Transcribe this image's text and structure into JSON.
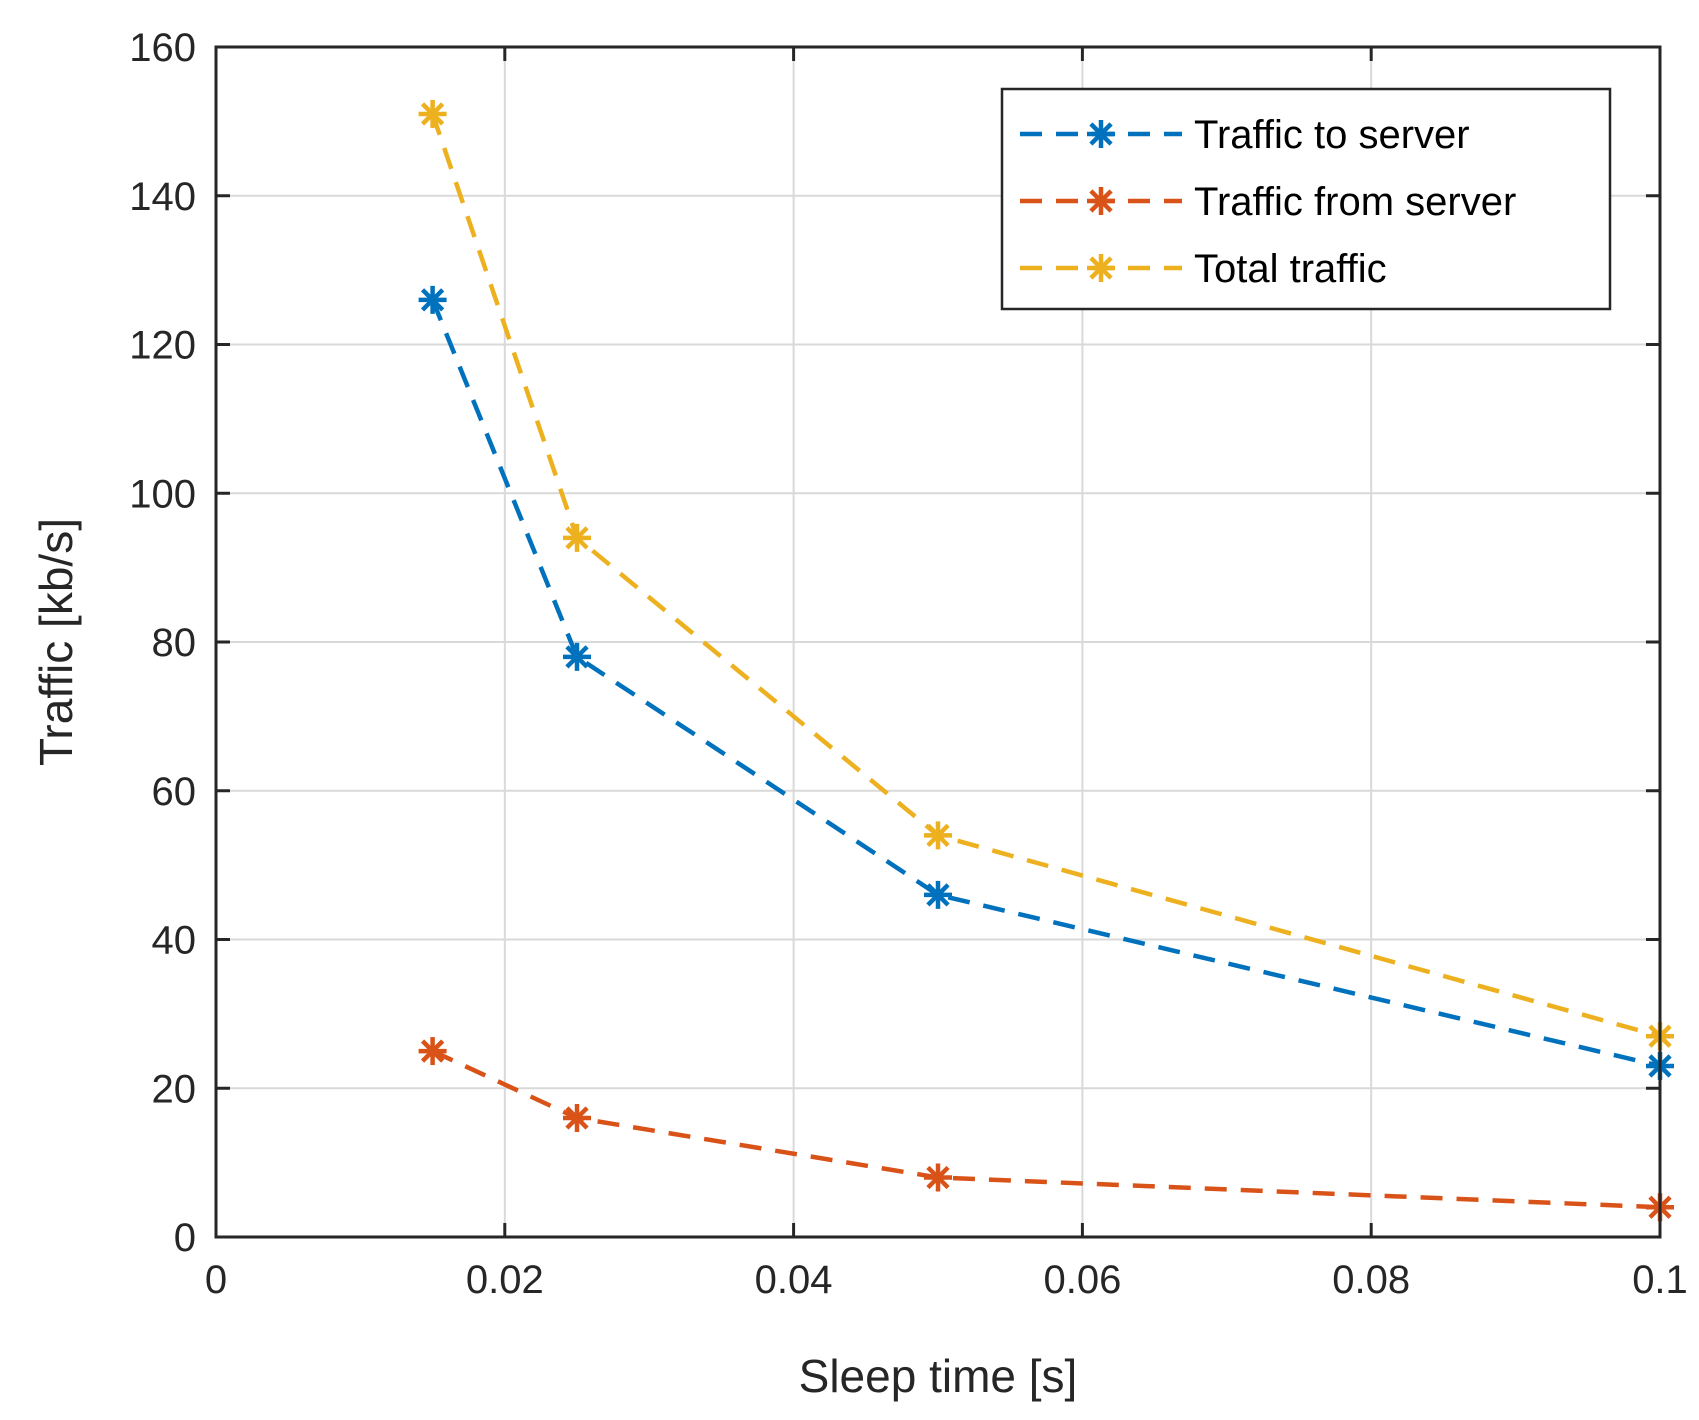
{
  "chart_data": {
    "type": "line",
    "title": "",
    "xlabel": "Sleep time [s]",
    "ylabel": "Traffic [kb/s]",
    "xlim": [
      0,
      0.1
    ],
    "ylim": [
      0,
      160
    ],
    "xticks": [
      0,
      0.02,
      0.04,
      0.06,
      0.08,
      0.1
    ],
    "xtick_labels": [
      "0",
      "0.02",
      "0.04",
      "0.06",
      "0.08",
      "0.1"
    ],
    "yticks": [
      0,
      20,
      40,
      60,
      80,
      100,
      120,
      140,
      160
    ],
    "ytick_labels": [
      "0",
      "20",
      "40",
      "60",
      "80",
      "100",
      "120",
      "140",
      "160"
    ],
    "grid": true,
    "legend_position": "top-right",
    "x": [
      0.015,
      0.025,
      0.05,
      0.1
    ],
    "series": [
      {
        "name": "Traffic to server",
        "color": "#0072bd",
        "marker": "asterisk",
        "line_style": "dashed",
        "values": [
          126,
          78,
          46,
          23
        ]
      },
      {
        "name": "Traffic from server",
        "color": "#d95319",
        "marker": "asterisk",
        "line_style": "dashed",
        "values": [
          25,
          16,
          8,
          4
        ]
      },
      {
        "name": "Total traffic",
        "color": "#edb120",
        "marker": "asterisk",
        "line_style": "dashed",
        "values": [
          151,
          94,
          54,
          27
        ]
      }
    ]
  }
}
